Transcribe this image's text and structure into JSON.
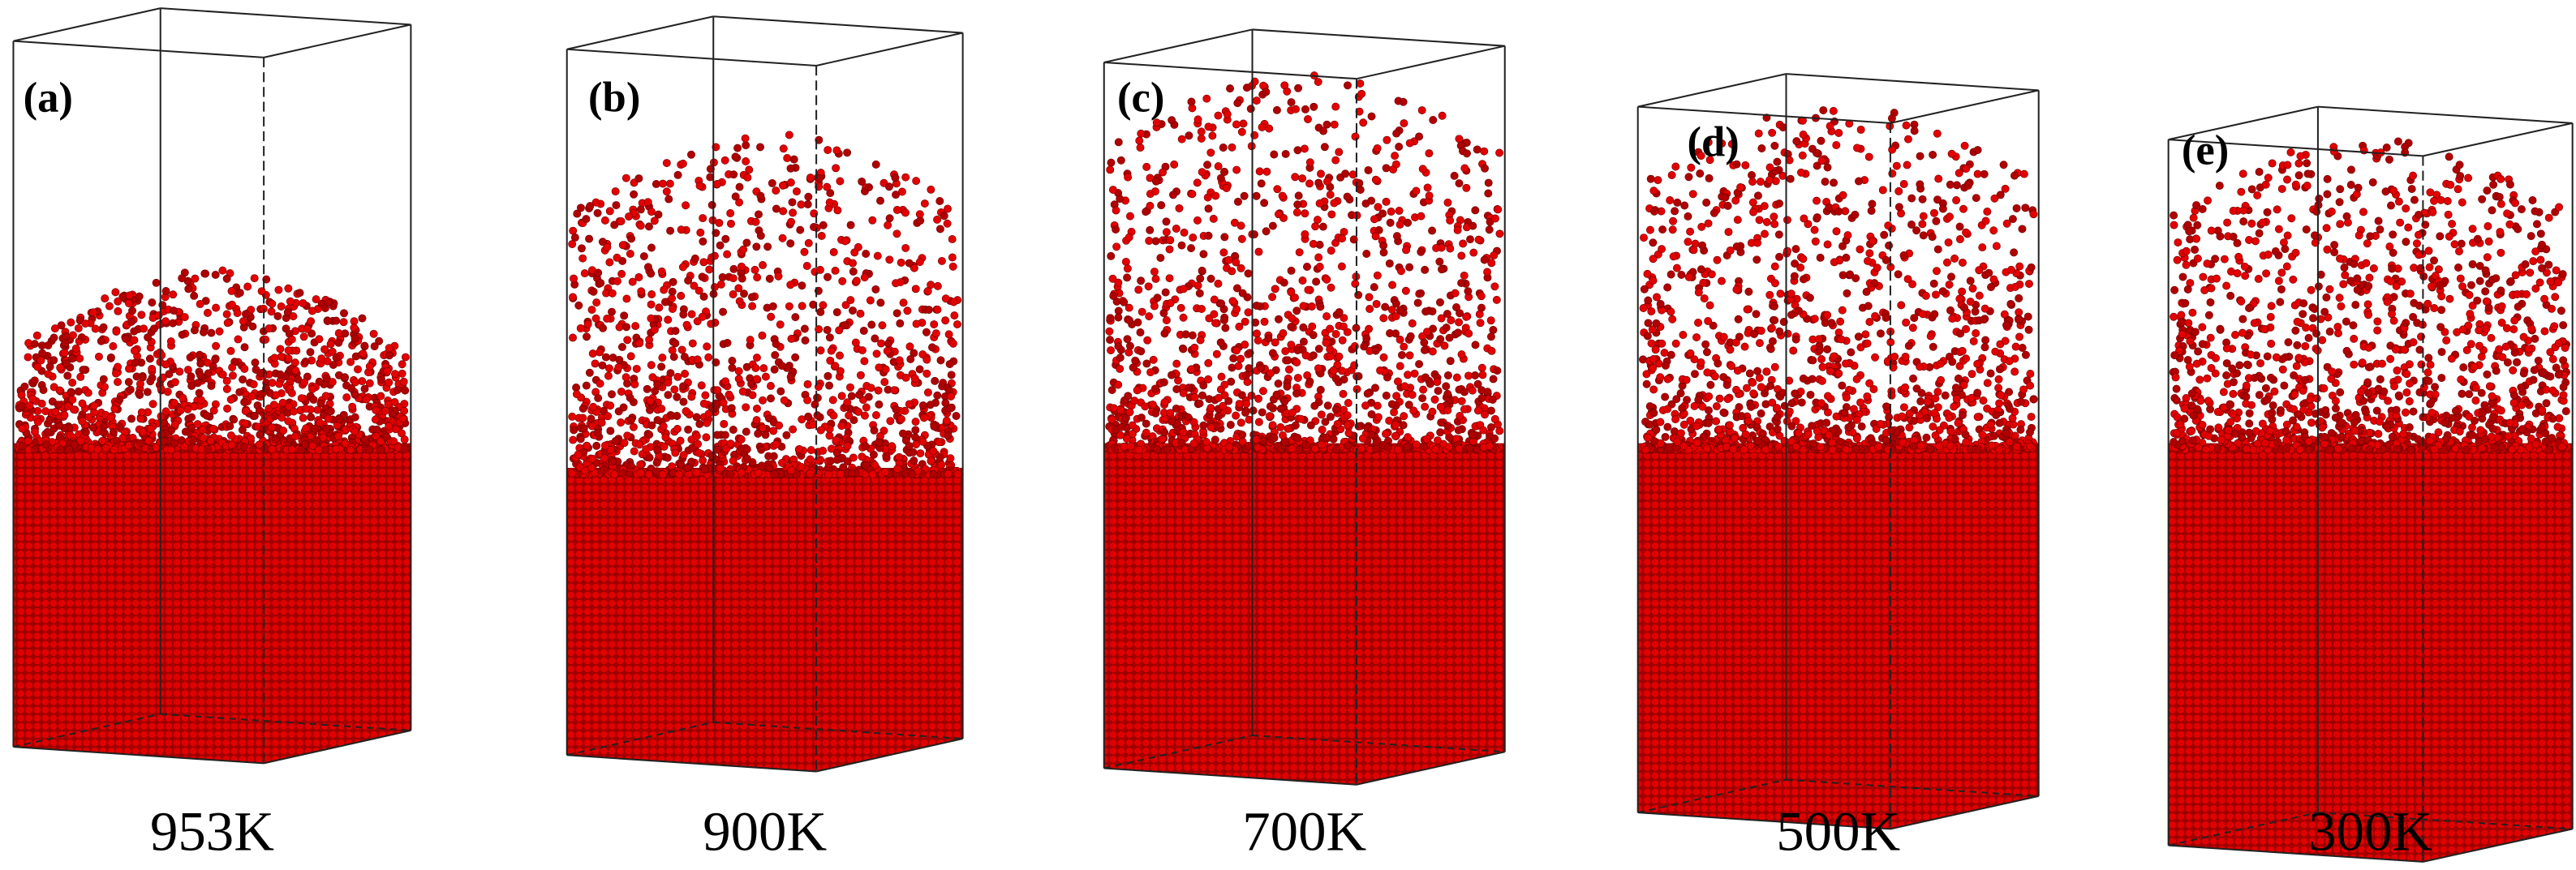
{
  "panels": [
    {
      "label": "(a)",
      "temperature": "953K"
    },
    {
      "label": "(b)",
      "temperature": "900K"
    },
    {
      "label": "(c)",
      "temperature": "700K"
    },
    {
      "label": "(d)",
      "temperature": "500K"
    },
    {
      "label": "(e)",
      "temperature": "300K"
    }
  ]
}
